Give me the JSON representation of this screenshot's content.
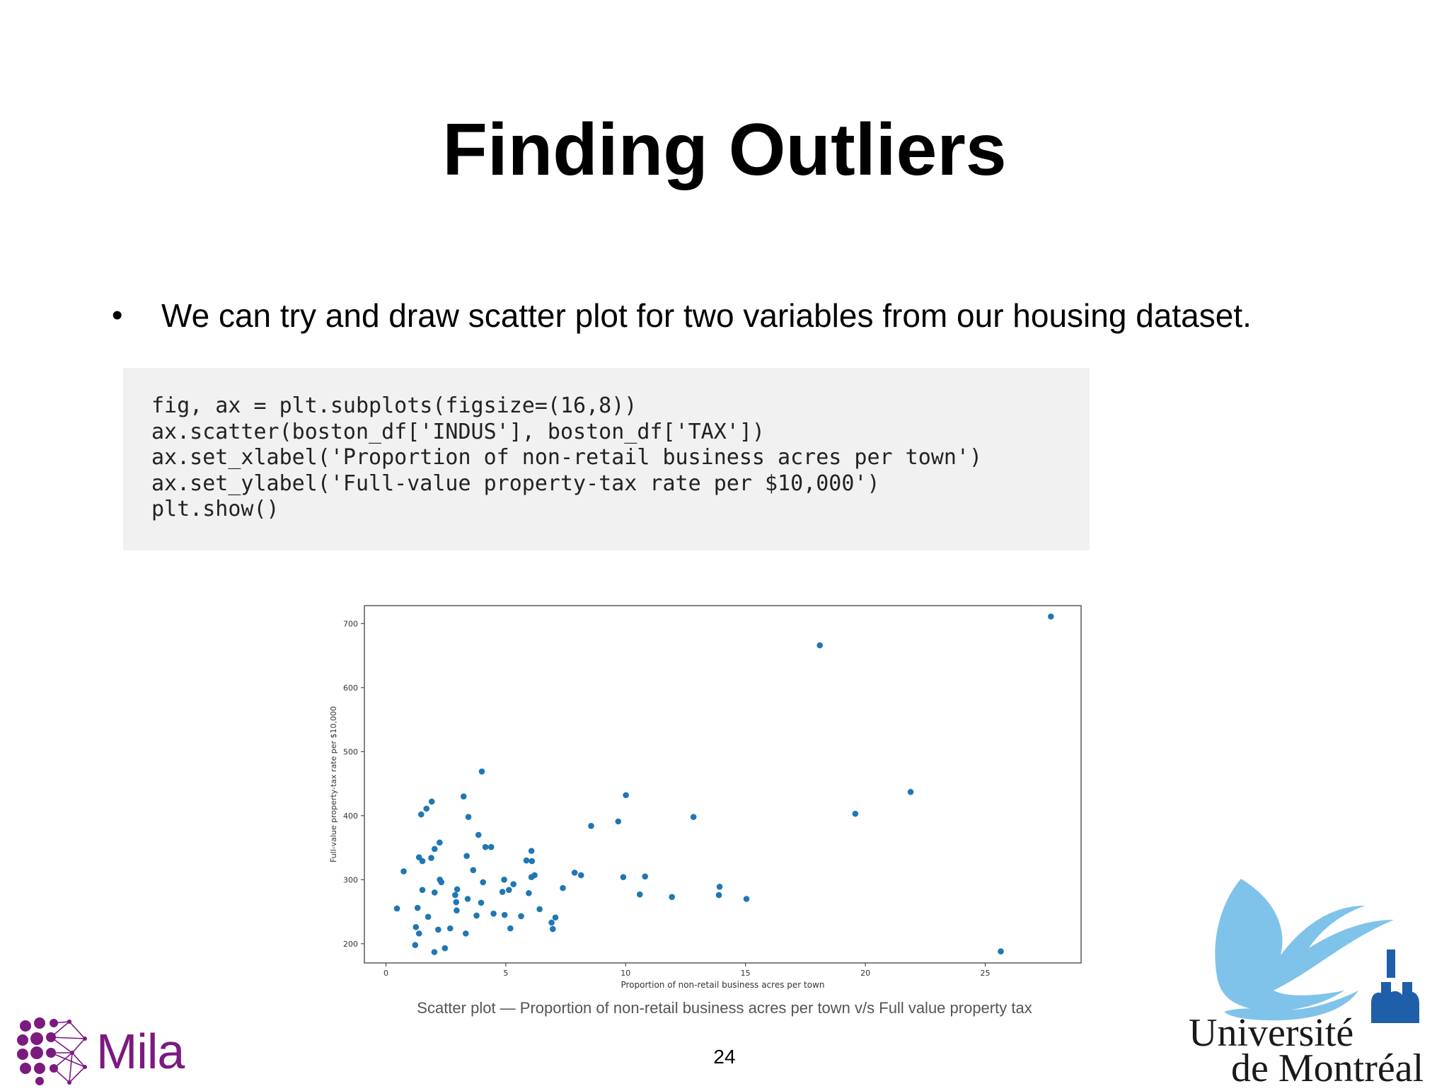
{
  "slide": {
    "title": "Finding Outliers",
    "bullet": "We can try and draw scatter plot for two variables from our housing dataset.",
    "code_lines": [
      "fig, ax = plt.subplots(figsize=(16,8))",
      "ax.scatter(boston_df['INDUS'], boston_df['TAX'])",
      "ax.set_xlabel('Proportion of non-retail business acres per town')",
      "ax.set_ylabel('Full-value property-tax rate per $10,000')",
      "plt.show()"
    ],
    "caption": "Scatter plot — Proportion of non-retail business acres per town v/s Full value property tax",
    "page_number": "24",
    "logos": {
      "mila": "Mila",
      "udem_line1": "Université",
      "udem_line2": "de Montréal"
    }
  },
  "colors": {
    "point": "#1f77b4",
    "mila": "#7b1a7f",
    "udem_bird": "#7fc3ea",
    "udem_mark": "#1f5ea8"
  },
  "chart_data": {
    "type": "scatter",
    "xlabel": "Proportion of non-retail business acres per town",
    "ylabel": "Full-value property-tax rate per $10,000",
    "xlim": [
      -0.9,
      29
    ],
    "ylim": [
      170,
      728
    ],
    "xticks": [
      0,
      5,
      10,
      15,
      20,
      25
    ],
    "yticks": [
      200,
      300,
      400,
      500,
      600,
      700
    ],
    "grid": false,
    "points": [
      [
        0.46,
        255
      ],
      [
        0.74,
        313
      ],
      [
        1.22,
        198
      ],
      [
        1.25,
        226
      ],
      [
        1.32,
        256
      ],
      [
        1.38,
        216
      ],
      [
        1.38,
        335
      ],
      [
        1.47,
        402
      ],
      [
        1.52,
        329
      ],
      [
        1.52,
        284
      ],
      [
        1.69,
        411
      ],
      [
        1.76,
        242
      ],
      [
        1.89,
        334
      ],
      [
        1.91,
        422
      ],
      [
        2.02,
        187
      ],
      [
        2.03,
        348
      ],
      [
        2.03,
        280
      ],
      [
        2.18,
        222
      ],
      [
        2.24,
        358
      ],
      [
        2.25,
        300
      ],
      [
        2.31,
        296
      ],
      [
        2.46,
        193
      ],
      [
        2.68,
        224
      ],
      [
        2.89,
        276
      ],
      [
        2.93,
        265
      ],
      [
        2.95,
        252
      ],
      [
        2.97,
        285
      ],
      [
        3.24,
        430
      ],
      [
        3.33,
        216
      ],
      [
        3.37,
        337
      ],
      [
        3.41,
        270
      ],
      [
        3.44,
        398
      ],
      [
        3.64,
        315
      ],
      [
        3.78,
        244
      ],
      [
        3.86,
        370
      ],
      [
        3.97,
        264
      ],
      [
        4.0,
        469
      ],
      [
        4.05,
        296
      ],
      [
        4.15,
        351
      ],
      [
        4.39,
        351
      ],
      [
        4.49,
        247
      ],
      [
        4.86,
        281
      ],
      [
        4.93,
        300
      ],
      [
        4.95,
        245
      ],
      [
        5.13,
        284
      ],
      [
        5.19,
        224
      ],
      [
        5.32,
        293
      ],
      [
        5.64,
        243
      ],
      [
        5.86,
        330
      ],
      [
        5.96,
        279
      ],
      [
        6.07,
        304
      ],
      [
        6.07,
        345
      ],
      [
        6.09,
        329
      ],
      [
        6.2,
        307
      ],
      [
        6.41,
        254
      ],
      [
        6.91,
        233
      ],
      [
        6.96,
        223
      ],
      [
        7.07,
        241
      ],
      [
        7.38,
        287
      ],
      [
        7.87,
        311
      ],
      [
        8.14,
        307
      ],
      [
        8.56,
        384
      ],
      [
        9.69,
        391
      ],
      [
        9.9,
        304
      ],
      [
        10.01,
        432
      ],
      [
        10.59,
        277
      ],
      [
        10.81,
        305
      ],
      [
        11.93,
        273
      ],
      [
        12.83,
        398
      ],
      [
        13.89,
        276
      ],
      [
        13.92,
        289
      ],
      [
        15.04,
        270
      ],
      [
        18.1,
        666
      ],
      [
        19.58,
        403
      ],
      [
        21.89,
        437
      ],
      [
        25.65,
        188
      ],
      [
        27.74,
        711
      ]
    ]
  }
}
